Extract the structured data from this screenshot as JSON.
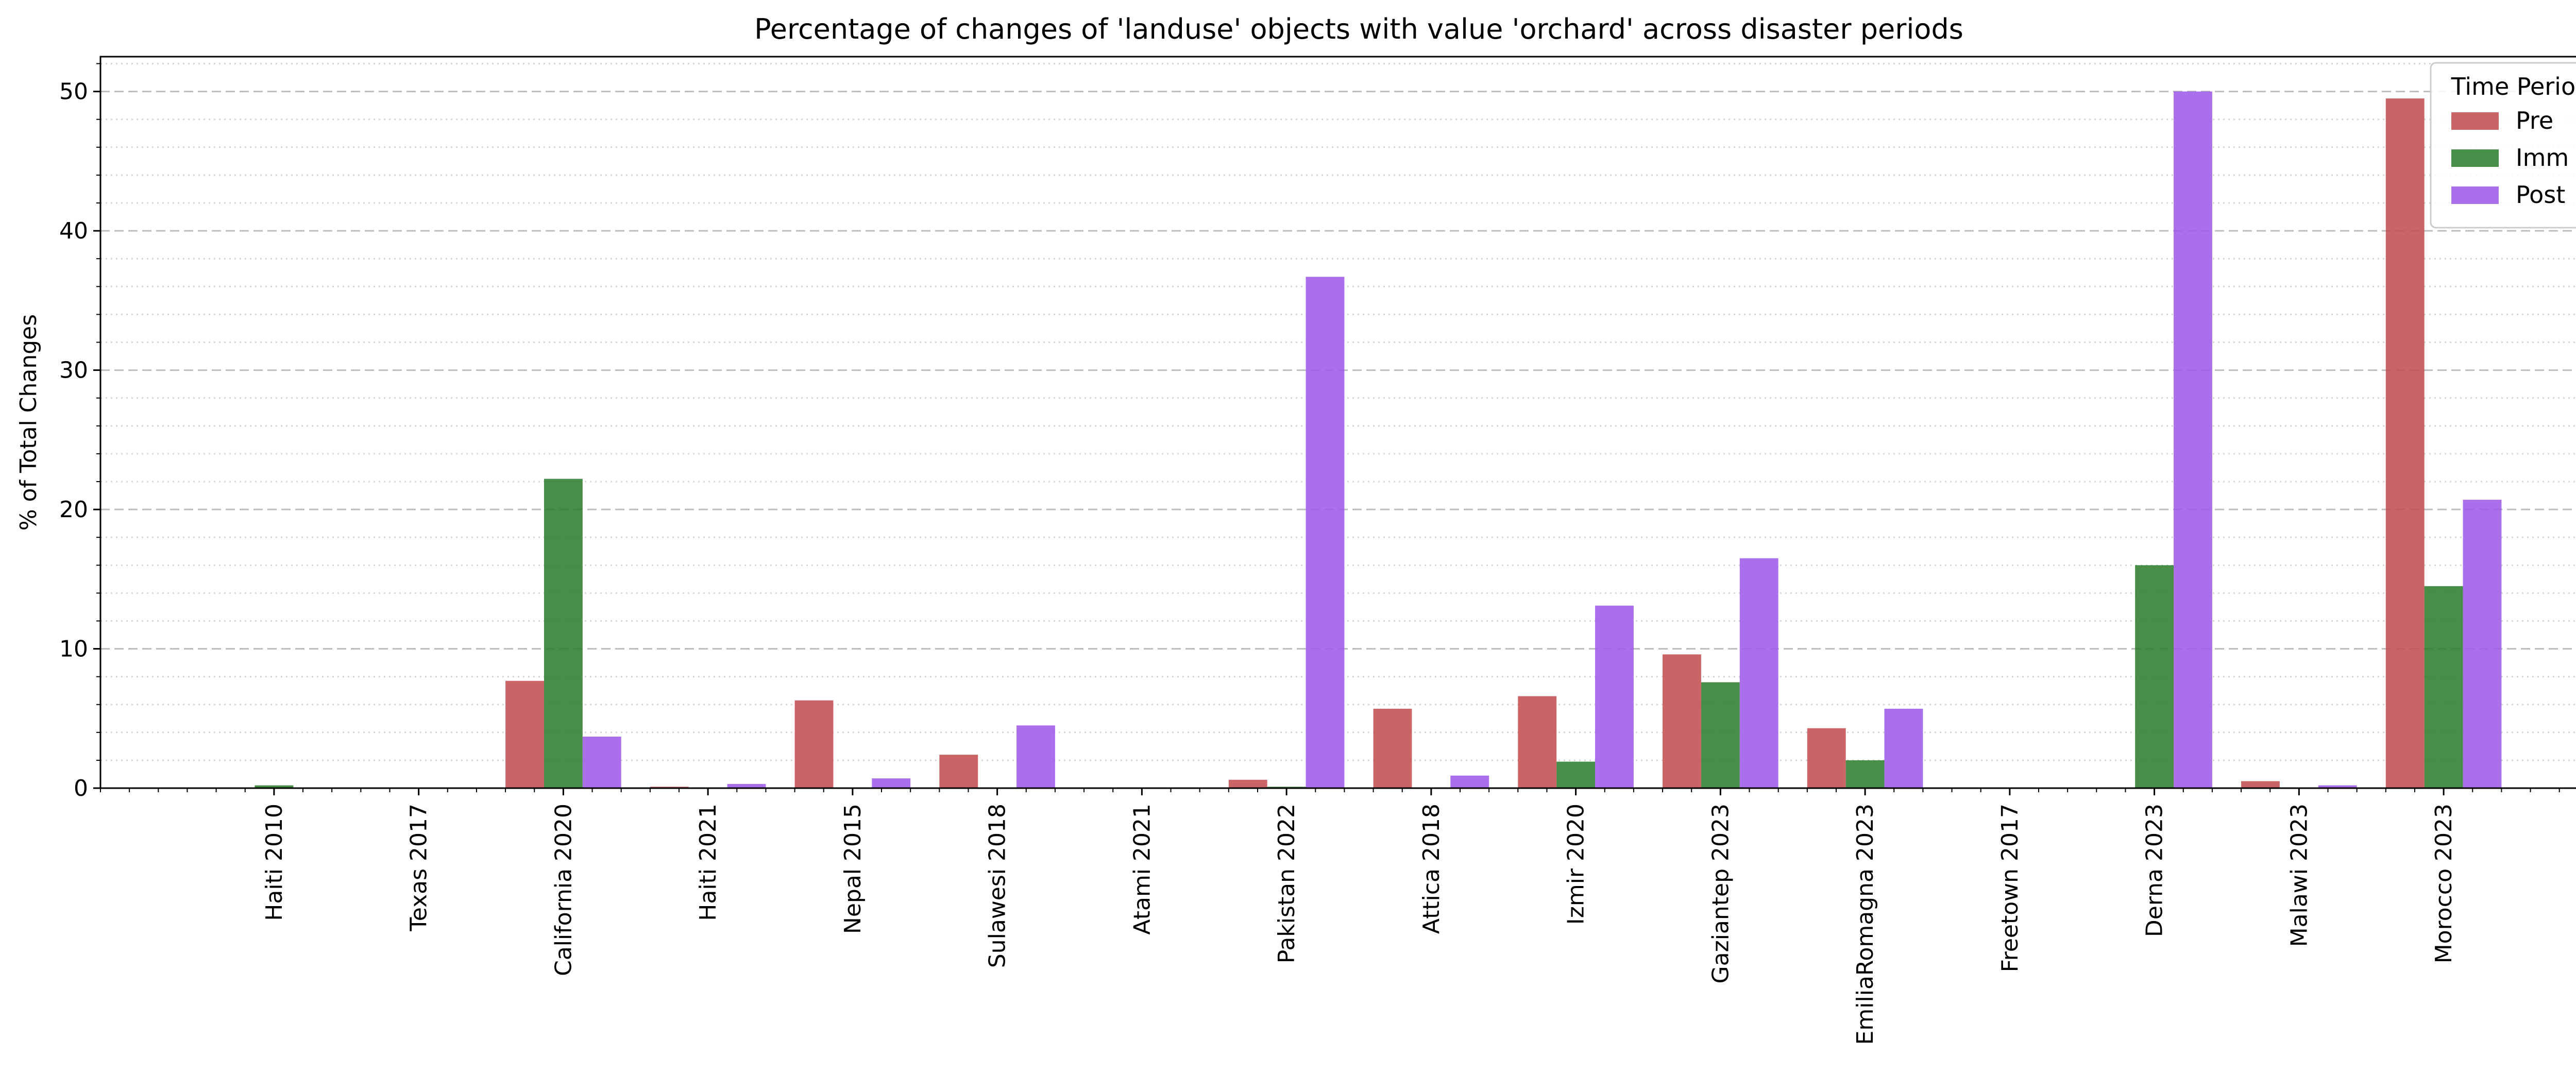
{
  "chart_data": {
    "type": "bar",
    "title": "Percentage of changes of 'landuse' objects with value 'orchard' across disaster periods",
    "xlabel": "",
    "ylabel": "% of Total Changes",
    "ylim": [
      0,
      52.5
    ],
    "yticks": [
      0,
      10,
      20,
      30,
      40,
      50
    ],
    "grid": "on (y-axis major dashed, minor dotted)",
    "legend_title": "Time Period",
    "legend_position": "top-right",
    "categories": [
      "Haiti 2010",
      "Texas 2017",
      "California 2020",
      "Haiti 2021",
      "Nepal 2015",
      "Sulawesi 2018",
      "Atami 2021",
      "Pakistan 2022",
      "Attica 2018",
      "Izmir 2020",
      "Gaziantep 2023",
      "EmiliaRomagna 2023",
      "Freetown 2017",
      "Derna 2023",
      "Malawi 2023",
      "Morocco 2023"
    ],
    "series": [
      {
        "name": "Pre",
        "color": "#c44e52",
        "values": [
          0,
          0,
          7.7,
          0.1,
          6.3,
          2.4,
          0,
          0.6,
          5.7,
          6.6,
          9.6,
          4.3,
          0,
          0,
          0.5,
          49.5
        ]
      },
      {
        "name": "Imm",
        "color": "#2f7d2f",
        "values": [
          0.2,
          0.05,
          22.2,
          0,
          0.05,
          0,
          0,
          0.1,
          0,
          1.9,
          7.6,
          2.0,
          0,
          16.0,
          0,
          14.5
        ]
      },
      {
        "name": "Post",
        "color": "#a15be8",
        "values": [
          0.05,
          0.05,
          3.7,
          0.3,
          0.7,
          4.5,
          0,
          36.7,
          0.9,
          13.1,
          16.5,
          5.7,
          0,
          50.0,
          0.2,
          20.7
        ]
      }
    ]
  }
}
